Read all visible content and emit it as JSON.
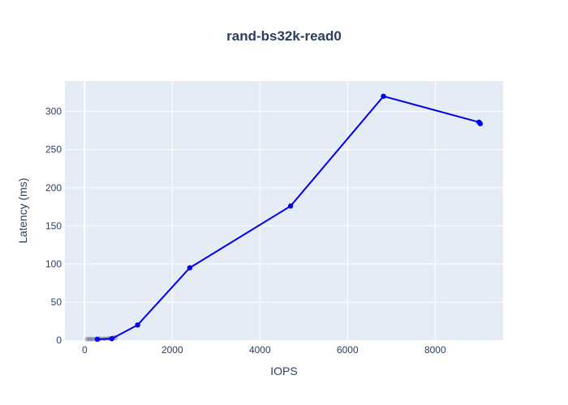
{
  "chart_data": {
    "type": "line",
    "title": "rand-bs32k-read0",
    "xlabel": "IOPS",
    "ylabel": "Latency (ms)",
    "xlim": [
      -450,
      9550
    ],
    "ylim": [
      0,
      340
    ],
    "x_ticks": [
      0,
      2000,
      4000,
      6000,
      8000
    ],
    "y_ticks": [
      0,
      50,
      100,
      150,
      200,
      250,
      300
    ],
    "grid": true,
    "legend": "none",
    "colors": {
      "plot_background": "#e5ecf6",
      "grid": "#ffffff",
      "main_series": "#0000ee",
      "secondary_series": "#7f7f9f",
      "text": "#2a3f5f"
    },
    "series": [
      {
        "style": "secondary",
        "x": [
          60,
          120,
          180,
          260,
          350,
          450,
          550,
          650,
          700
        ],
        "y": [
          1.5,
          1.5,
          1.5,
          1.6,
          1.8,
          2.0,
          2.4,
          3.0,
          3.5
        ]
      },
      {
        "style": "main",
        "x": [
          290,
          620,
          1210,
          2400,
          4700,
          6820,
          9000,
          9030
        ],
        "y": [
          1.2,
          2.0,
          20,
          95,
          176,
          320,
          286,
          284
        ]
      }
    ]
  }
}
